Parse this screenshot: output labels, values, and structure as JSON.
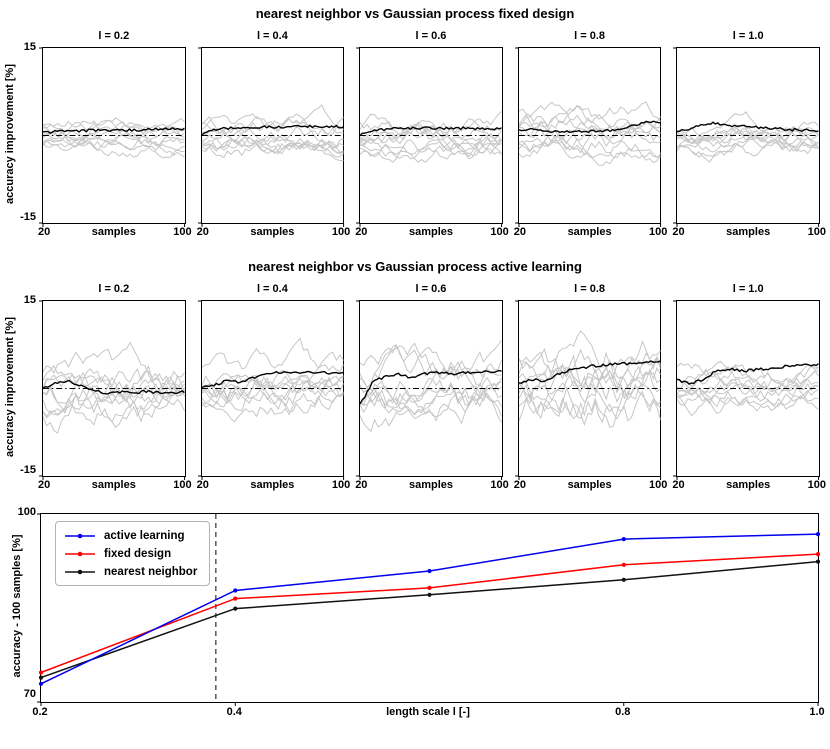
{
  "figure_bg": "#ffffff",
  "colors": {
    "gray_runs": "#c6c6c6",
    "mean_line": "#000000",
    "active_learning": "#0000ee",
    "fixed_design": "#ff0000",
    "nearest_neighbor": "#111111",
    "vline": "#4d4d4d",
    "spine": "#000000"
  },
  "chart_data": [
    {
      "type": "line",
      "role": "small-multiples-spaghetti",
      "title": "nearest neighbor vs Gaussian process fixed design",
      "ylabel": "accuracy improvement [%]",
      "xlabel": "samples",
      "xlim": [
        20,
        100
      ],
      "ylim": [
        -15,
        15
      ],
      "xticks": [
        "20",
        "100"
      ],
      "yticks": [
        "15",
        "-15"
      ],
      "zero_line_style": "dash-dot",
      "gray_line_count": 10,
      "subplots": [
        {
          "title": "l = 0.2",
          "seed": 101,
          "spread": 2.6,
          "mean": [
            0.5,
            0.7,
            0.8,
            0.8,
            0.9,
            0.9,
            1.0,
            0.9,
            1.0,
            1.1,
            1.1,
            1.2
          ]
        },
        {
          "title": "l = 0.4",
          "seed": 102,
          "spread": 3.0,
          "mean": [
            0.2,
            0.9,
            1.3,
            1.2,
            1.4,
            1.5,
            1.4,
            1.5,
            1.5,
            1.6,
            1.5,
            1.5
          ]
        },
        {
          "title": "l = 0.6",
          "seed": 103,
          "spread": 3.2,
          "mean": [
            0.1,
            0.7,
            1.1,
            1.2,
            1.2,
            1.3,
            1.3,
            1.2,
            1.3,
            1.2,
            1.1,
            1.2
          ]
        },
        {
          "title": "l = 0.8",
          "seed": 104,
          "spread": 3.6,
          "mean": [
            0.9,
            1.3,
            0.8,
            0.6,
            0.7,
            0.6,
            0.8,
            0.9,
            1.1,
            1.9,
            2.3,
            2.3
          ]
        },
        {
          "title": "l = 1.0",
          "seed": 105,
          "spread": 2.8,
          "mean": [
            0.9,
            1.1,
            1.9,
            2.1,
            1.8,
            1.6,
            1.4,
            1.3,
            1.1,
            1.0,
            0.9,
            0.7
          ]
        }
      ]
    },
    {
      "type": "line",
      "role": "small-multiples-spaghetti",
      "title": "nearest neighbor vs Gaussian process active learning",
      "ylabel": "accuracy improvement [%]",
      "xlabel": "samples",
      "xlim": [
        20,
        100
      ],
      "ylim": [
        -15,
        15
      ],
      "xticks": [
        "20",
        "100"
      ],
      "yticks": [
        "15",
        "-15"
      ],
      "zero_line_style": "dash-dot",
      "gray_line_count": 10,
      "subplots": [
        {
          "title": "l = 0.2",
          "seed": 201,
          "spread": 5.2,
          "mean": [
            0.2,
            0.9,
            1.3,
            0.4,
            -0.4,
            -0.9,
            -0.6,
            -0.8,
            -0.5,
            -0.7,
            -0.8,
            -0.6
          ]
        },
        {
          "title": "l = 0.4",
          "seed": 202,
          "spread": 4.4,
          "mean": [
            0.3,
            0.6,
            1.4,
            1.1,
            1.9,
            2.4,
            2.8,
            2.6,
            2.9,
            2.8,
            2.6,
            2.6
          ]
        },
        {
          "title": "l = 0.6",
          "seed": 203,
          "spread": 5.0,
          "mean": [
            -2.8,
            1.2,
            2.0,
            2.4,
            1.8,
            2.5,
            2.8,
            2.5,
            2.8,
            2.7,
            2.9,
            3.0
          ]
        },
        {
          "title": "l = 0.8",
          "seed": 204,
          "spread": 6.8,
          "mean": [
            1.0,
            1.6,
            1.1,
            2.4,
            3.2,
            3.6,
            3.9,
            4.1,
            4.2,
            4.4,
            4.6,
            4.8
          ]
        },
        {
          "title": "l = 1.0",
          "seed": 205,
          "spread": 3.4,
          "mean": [
            1.6,
            0.7,
            1.6,
            2.9,
            3.4,
            3.0,
            3.2,
            3.4,
            3.7,
            3.9,
            4.0,
            4.1
          ]
        }
      ]
    },
    {
      "type": "line",
      "role": "summary-comparison",
      "title": "",
      "xlabel": "length scale l [-]",
      "ylabel": "accuracy - 100 samples [%]",
      "x": [
        0.2,
        0.4,
        0.6,
        0.8,
        1.0
      ],
      "series": [
        {
          "name": "active learning",
          "color": "#0000ee",
          "values": [
            72.9,
            87.8,
            90.9,
            96.0,
            96.8
          ]
        },
        {
          "name": "fixed design",
          "color": "#ff0000",
          "values": [
            74.7,
            86.5,
            88.2,
            91.9,
            93.6
          ]
        },
        {
          "name": "nearest neighbor",
          "color": "#111111",
          "values": [
            73.9,
            84.9,
            87.1,
            89.5,
            92.4
          ]
        }
      ],
      "xticks": [
        "0.2",
        "0.4",
        "0.8",
        "1.0"
      ],
      "xtick_values": [
        0.2,
        0.4,
        0.8,
        1.0
      ],
      "yticks": [
        "100",
        "70"
      ],
      "xlim": [
        0.2,
        1.0
      ],
      "ylim": [
        70,
        100
      ],
      "vline": {
        "x": 0.38,
        "style": "dashed"
      },
      "legend_position": "top-left",
      "grid": false,
      "marker": "point"
    }
  ]
}
